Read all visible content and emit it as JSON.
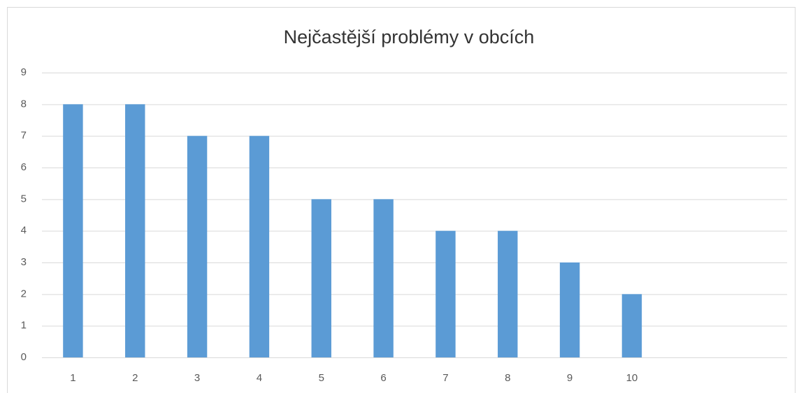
{
  "chart_data": {
    "type": "bar",
    "title": "Nejčastější problémy v obcích",
    "categories": [
      "1",
      "2",
      "3",
      "4",
      "5",
      "6",
      "7",
      "8",
      "9",
      "10",
      null,
      null
    ],
    "values": [
      8,
      8,
      7,
      7,
      5,
      5,
      4,
      4,
      3,
      2,
      null,
      null
    ],
    "color": "#5b9bd5",
    "ylim": [
      0,
      9
    ],
    "yticks": [
      0,
      1,
      2,
      3,
      4,
      5,
      6,
      7,
      8,
      9
    ],
    "grid": true
  }
}
